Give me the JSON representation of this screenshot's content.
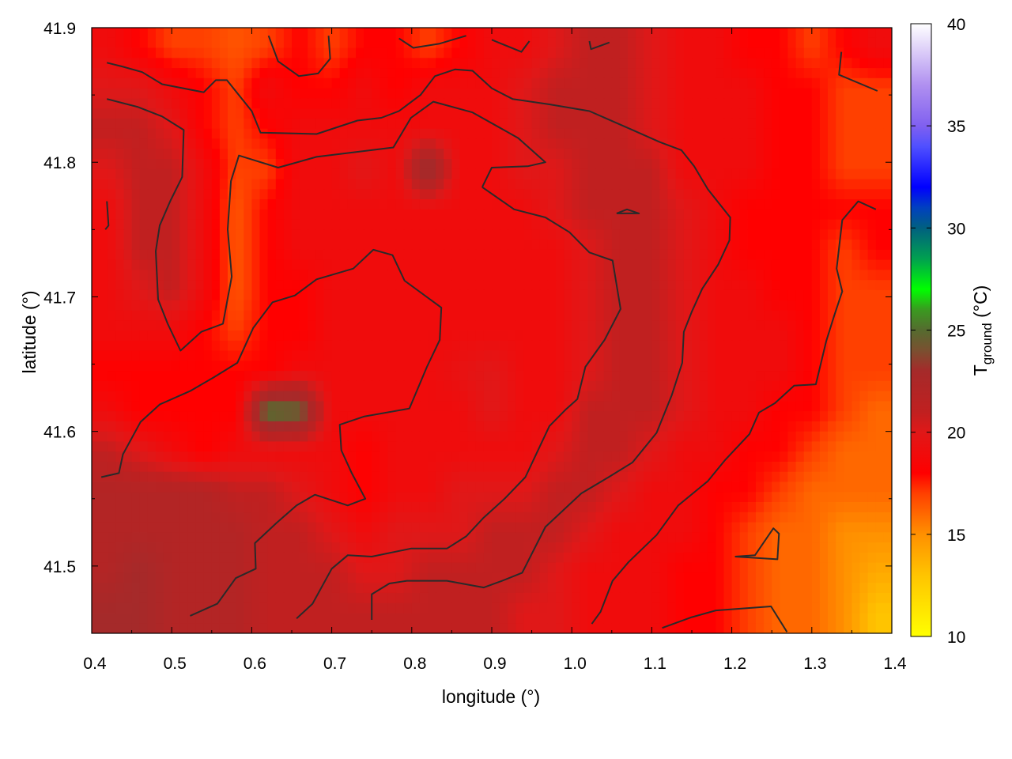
{
  "chart_data": {
    "type": "heatmap",
    "xlabel": "longitude (°)",
    "ylabel": "latitude (°)",
    "colorbar_label": {
      "main": "T",
      "subscript": "ground",
      "unit": " (°C)"
    },
    "xlim": [
      0.4,
      1.4
    ],
    "ylim": [
      41.45,
      41.9
    ],
    "clim": [
      10,
      40
    ],
    "xticks": [
      "0.4",
      "0.5",
      "0.6",
      "0.7",
      "0.8",
      "0.9",
      "1.0",
      "1.1",
      "1.2",
      "1.3",
      "1.4"
    ],
    "yticks": [
      "41.5",
      "41.6",
      "41.7",
      "41.8",
      "41.9"
    ],
    "cticks": [
      "10",
      "15",
      "20",
      "25",
      "30",
      "35",
      "40"
    ],
    "grid": false,
    "colormap": [
      [
        10,
        "#ffff00"
      ],
      [
        13,
        "#ffc400"
      ],
      [
        15,
        "#ff9000"
      ],
      [
        17,
        "#ff4000"
      ],
      [
        18,
        "#ff0000"
      ],
      [
        20,
        "#e01818"
      ],
      [
        21,
        "#c02020"
      ],
      [
        23,
        "#a52a2a"
      ],
      [
        24,
        "#7a5030"
      ],
      [
        25,
        "#556b2f"
      ],
      [
        26,
        "#3a9a20"
      ],
      [
        27,
        "#00ff00"
      ],
      [
        28.5,
        "#00a050"
      ],
      [
        30,
        "#006080"
      ],
      [
        31,
        "#0040c0"
      ],
      [
        32,
        "#0000ff"
      ],
      [
        34,
        "#5050ff"
      ],
      [
        35,
        "#8060f0"
      ],
      [
        37,
        "#b090f0"
      ],
      [
        40,
        "#ffffff"
      ]
    ],
    "grid_lon": [
      0.42,
      0.46,
      0.5,
      0.54,
      0.58,
      0.62,
      0.66,
      0.7,
      0.74,
      0.78,
      0.82,
      0.86,
      0.9,
      0.94,
      0.98,
      1.02,
      1.06,
      1.1,
      1.14,
      1.18,
      1.22,
      1.26,
      1.3,
      1.34,
      1.38
    ],
    "grid_lat": [
      41.885,
      41.855,
      41.825,
      41.795,
      41.765,
      41.735,
      41.705,
      41.675,
      41.645,
      41.615,
      41.585,
      41.555,
      41.525,
      41.495,
      41.465
    ],
    "values": [
      [
        19,
        18,
        17,
        17,
        16.5,
        17,
        18,
        17,
        18,
        18,
        17,
        18,
        19,
        19,
        20,
        21,
        21,
        20,
        19,
        19,
        18,
        18,
        17,
        18,
        19
      ],
      [
        20,
        20,
        19,
        18,
        17,
        19,
        18,
        18,
        19,
        18,
        19,
        19,
        19,
        20,
        21,
        21,
        21,
        20,
        19,
        19,
        19,
        18,
        18,
        17,
        17
      ],
      [
        21,
        21,
        20,
        18,
        17,
        18,
        19,
        19,
        19,
        19,
        19,
        19,
        19,
        20,
        21,
        21,
        21,
        20,
        19,
        19,
        19,
        18,
        18,
        17,
        17
      ],
      [
        20,
        21,
        21,
        19,
        17,
        17,
        19,
        19,
        20,
        19,
        24,
        19,
        19,
        20,
        20,
        21,
        21,
        21,
        19,
        19,
        19,
        18,
        18,
        17,
        17
      ],
      [
        19,
        21,
        21,
        19,
        16.5,
        18,
        19,
        19,
        19,
        19,
        19,
        19,
        19,
        19,
        20,
        21,
        21,
        21,
        20,
        19,
        18,
        18,
        18,
        18,
        18
      ],
      [
        19,
        21,
        21,
        19,
        16.5,
        18,
        19,
        19,
        19,
        19,
        19,
        19,
        19,
        19,
        19,
        20,
        21,
        21,
        20,
        19,
        18,
        18,
        18,
        17,
        18
      ],
      [
        19,
        20,
        21,
        19,
        16.5,
        18,
        18,
        19,
        19,
        19,
        19,
        19,
        19,
        19,
        19,
        20,
        21,
        21,
        20,
        19,
        19,
        18,
        18,
        17,
        17
      ],
      [
        19,
        19,
        19,
        18,
        17,
        18,
        18,
        19,
        19,
        19,
        19,
        19,
        19,
        19,
        19,
        20,
        21,
        21,
        20,
        19,
        19,
        19,
        18,
        17,
        17
      ],
      [
        18,
        18,
        18,
        18,
        18,
        18,
        19,
        19,
        19,
        19,
        19,
        19.5,
        20,
        19,
        19,
        20,
        21,
        21,
        20,
        19,
        19,
        19,
        18,
        17,
        17
      ],
      [
        19,
        18,
        18,
        18,
        18,
        25.5,
        25,
        19,
        19,
        19,
        19,
        19,
        20,
        19,
        19,
        21,
        21,
        21,
        20,
        19,
        19,
        18,
        18,
        17,
        16
      ],
      [
        21,
        20,
        19,
        18,
        19,
        19,
        19,
        19,
        18,
        19,
        19,
        19,
        19,
        19,
        20,
        21,
        21,
        20,
        19,
        19,
        18,
        18,
        17,
        16,
        16
      ],
      [
        22,
        22,
        22,
        22,
        21,
        21,
        20,
        19,
        18,
        19,
        19,
        20,
        20,
        20,
        21,
        21,
        20,
        19,
        19,
        18,
        18,
        17,
        16,
        16,
        16
      ],
      [
        22,
        22,
        22,
        22,
        22,
        21,
        21,
        20,
        19,
        20,
        20,
        20,
        21,
        21,
        21,
        20,
        19,
        19,
        19,
        18,
        17,
        16,
        16,
        15,
        15
      ],
      [
        22,
        23,
        22,
        22,
        22,
        21,
        21,
        21,
        20,
        20,
        21,
        21,
        21,
        21,
        20,
        19,
        19,
        19,
        18,
        18,
        17,
        16,
        16,
        15,
        14
      ],
      [
        23,
        23,
        22,
        22,
        22,
        21,
        21,
        21,
        21,
        21,
        21,
        21,
        21,
        20,
        20,
        19,
        19,
        19,
        18,
        18,
        17,
        16,
        16,
        15,
        13
      ]
    ],
    "contour_color": "#2a2a2a",
    "contours": [
      [
        [
          0.888,
          41.7815
        ],
        [
          0.9,
          41.796
        ],
        [
          0.945,
          41.797
        ],
        [
          0.967,
          41.8
        ],
        [
          0.933,
          41.818
        ],
        [
          0.876,
          41.837
        ],
        [
          0.827,
          41.845
        ],
        [
          0.799,
          41.833
        ],
        [
          0.777,
          41.811
        ],
        [
          0.681,
          41.804
        ],
        [
          0.633,
          41.796
        ],
        [
          0.584,
          41.805
        ],
        [
          0.574,
          41.786
        ],
        [
          0.57,
          41.75
        ],
        [
          0.575,
          41.715
        ],
        [
          0.564,
          41.68
        ],
        [
          0.537,
          41.674
        ],
        [
          0.511,
          41.66
        ],
        [
          0.495,
          41.68
        ],
        [
          0.483,
          41.698
        ],
        [
          0.48,
          41.734
        ],
        [
          0.485,
          41.753
        ],
        [
          0.498,
          41.771
        ],
        [
          0.513,
          41.789
        ],
        [
          0.515,
          41.824
        ],
        [
          0.488,
          41.834
        ],
        [
          0.458,
          41.841
        ],
        [
          0.419,
          41.847
        ]
      ],
      [
        [
          0.888,
          41.7815
        ],
        [
          0.928,
          41.765
        ],
        [
          0.967,
          41.759
        ],
        [
          0.997,
          41.748
        ],
        [
          1.022,
          41.733
        ],
        [
          1.051,
          41.727
        ],
        [
          1.061,
          41.691
        ],
        [
          1.041,
          41.668
        ],
        [
          1.017,
          41.648
        ],
        [
          1.007,
          41.624
        ],
        [
          0.992,
          41.616
        ],
        [
          0.972,
          41.604
        ],
        [
          0.942,
          41.566
        ],
        [
          0.916,
          41.55
        ],
        [
          0.89,
          41.536
        ],
        [
          0.868,
          41.522
        ],
        [
          0.844,
          41.513
        ],
        [
          0.799,
          41.513
        ],
        [
          0.75,
          41.507
        ],
        [
          0.72,
          41.508
        ],
        [
          0.7,
          41.498
        ],
        [
          0.676,
          41.472
        ],
        [
          0.656,
          41.461
        ]
      ],
      [
        [
          0.523,
          41.463
        ],
        [
          0.557,
          41.472
        ],
        [
          0.58,
          41.491
        ],
        [
          0.605,
          41.498
        ],
        [
          0.604,
          41.517
        ],
        [
          0.631,
          41.532
        ],
        [
          0.656,
          41.545
        ],
        [
          0.679,
          41.553
        ],
        [
          0.72,
          41.545
        ],
        [
          0.742,
          41.55
        ],
        [
          0.725,
          41.569
        ],
        [
          0.712,
          41.586
        ],
        [
          0.71,
          41.605
        ],
        [
          0.74,
          41.611
        ],
        [
          0.797,
          41.617
        ],
        [
          0.819,
          41.648
        ],
        [
          0.835,
          41.668
        ],
        [
          0.837,
          41.692
        ],
        [
          0.791,
          41.712
        ],
        [
          0.776,
          41.731
        ],
        [
          0.752,
          41.735
        ],
        [
          0.727,
          41.721
        ],
        [
          0.681,
          41.713
        ],
        [
          0.654,
          41.701
        ],
        [
          0.626,
          41.696
        ],
        [
          0.602,
          41.677
        ],
        [
          0.582,
          41.651
        ],
        [
          0.552,
          41.64
        ],
        [
          0.523,
          41.63
        ],
        [
          0.485,
          41.62
        ],
        [
          0.461,
          41.607
        ],
        [
          0.439,
          41.583
        ],
        [
          0.434,
          41.569
        ],
        [
          0.412,
          41.566
        ]
      ],
      [
        [
          0.75,
          41.46
        ],
        [
          0.75,
          41.479
        ],
        [
          0.772,
          41.487
        ],
        [
          0.794,
          41.489
        ],
        [
          0.844,
          41.489
        ],
        [
          0.89,
          41.484
        ],
        [
          0.913,
          41.489
        ],
        [
          0.938,
          41.495
        ],
        [
          0.967,
          41.529
        ],
        [
          1.012,
          41.554
        ],
        [
          1.046,
          41.566
        ],
        [
          1.076,
          41.577
        ],
        [
          1.106,
          41.599
        ],
        [
          1.125,
          41.627
        ],
        [
          1.138,
          41.651
        ],
        [
          1.14,
          41.674
        ],
        [
          1.15,
          41.689
        ],
        [
          1.163,
          41.706
        ],
        [
          1.183,
          41.724
        ],
        [
          1.197,
          41.742
        ],
        [
          1.198,
          41.759
        ],
        [
          1.17,
          41.78
        ],
        [
          1.153,
          41.797
        ],
        [
          1.137,
          41.809
        ],
        [
          1.11,
          41.815
        ],
        [
          1.076,
          41.824
        ],
        [
          1.022,
          41.838
        ],
        [
          0.972,
          41.843
        ],
        [
          0.926,
          41.847
        ],
        [
          0.9,
          41.855
        ],
        [
          0.876,
          41.868
        ],
        [
          0.854,
          41.869
        ],
        [
          0.829,
          41.864
        ],
        [
          0.811,
          41.85
        ],
        [
          0.784,
          41.838
        ],
        [
          0.762,
          41.833
        ],
        [
          0.732,
          41.831
        ],
        [
          0.681,
          41.821
        ],
        [
          0.611,
          41.822
        ],
        [
          0.6,
          41.838
        ],
        [
          0.569,
          41.861
        ],
        [
          0.555,
          41.861
        ],
        [
          0.54,
          41.852
        ],
        [
          0.488,
          41.858
        ],
        [
          0.463,
          41.867
        ],
        [
          0.439,
          41.871
        ],
        [
          0.419,
          41.874
        ]
      ],
      [
        [
          1.025,
          41.457
        ],
        [
          1.036,
          41.466
        ],
        [
          1.051,
          41.489
        ],
        [
          1.071,
          41.503
        ],
        [
          1.106,
          41.523
        ],
        [
          1.133,
          41.545
        ],
        [
          1.17,
          41.563
        ],
        [
          1.192,
          41.579
        ],
        [
          1.222,
          41.598
        ],
        [
          1.234,
          41.614
        ],
        [
          1.254,
          41.621
        ],
        [
          1.278,
          41.634
        ],
        [
          1.305,
          41.635
        ],
        [
          1.318,
          41.667
        ],
        [
          1.328,
          41.686
        ],
        [
          1.338,
          41.704
        ],
        [
          1.331,
          41.721
        ],
        [
          1.338,
          41.757
        ],
        [
          1.358,
          41.771
        ],
        [
          1.38,
          41.765
        ]
      ],
      [
        [
          1.113,
          41.454
        ],
        [
          1.15,
          41.462
        ],
        [
          1.18,
          41.467
        ],
        [
          1.249,
          41.47
        ],
        [
          1.269,
          41.451
        ]
      ],
      [
        [
          1.204,
          41.507
        ],
        [
          1.229,
          41.508
        ],
        [
          1.252,
          41.528
        ],
        [
          1.259,
          41.524
        ],
        [
          1.257,
          41.505
        ],
        [
          1.204,
          41.507
        ]
      ],
      [
        [
          1.056,
          41.762
        ],
        [
          1.069,
          41.765
        ],
        [
          1.084,
          41.762
        ],
        [
          1.056,
          41.762
        ]
      ],
      [
        [
          0.621,
          41.894
        ],
        [
          0.633,
          41.875
        ],
        [
          0.659,
          41.864
        ],
        [
          0.683,
          41.866
        ],
        [
          0.698,
          41.877
        ],
        [
          0.696,
          41.894
        ]
      ],
      [
        [
          0.784,
          41.892
        ],
        [
          0.802,
          41.885
        ],
        [
          0.834,
          41.888
        ],
        [
          0.868,
          41.894
        ]
      ],
      [
        [
          0.9,
          41.891
        ],
        [
          0.937,
          41.882
        ],
        [
          0.947,
          41.89
        ]
      ],
      [
        [
          1.022,
          41.89
        ],
        [
          1.024,
          41.884
        ],
        [
          1.047,
          41.889
        ]
      ],
      [
        [
          1.382,
          41.853
        ],
        [
          1.334,
          41.865
        ],
        [
          1.337,
          41.882
        ]
      ],
      [
        [
          0.419,
          41.771
        ],
        [
          0.421,
          41.753
        ],
        [
          0.417,
          41.75
        ]
      ]
    ]
  }
}
